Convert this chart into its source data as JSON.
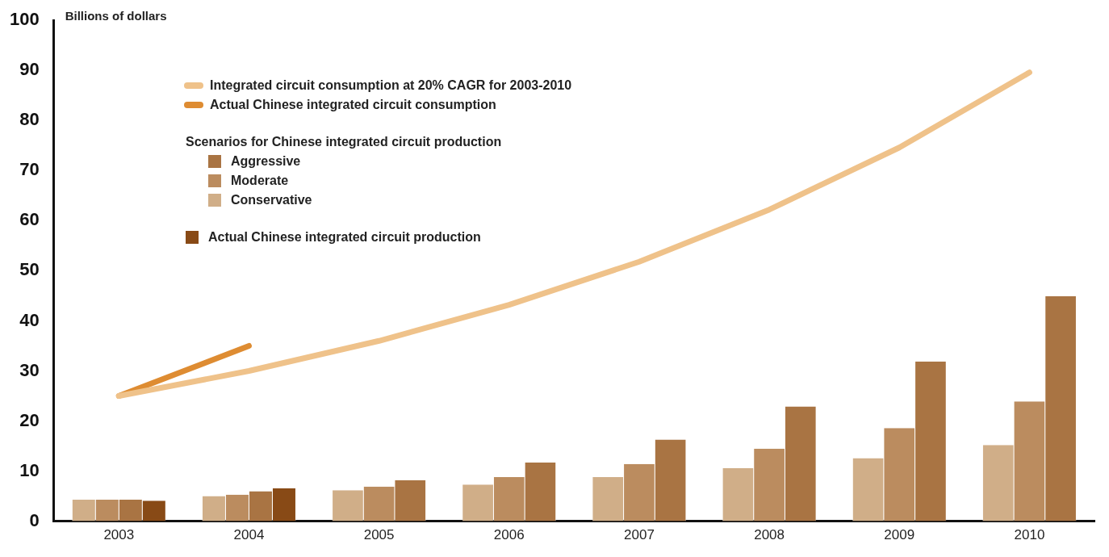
{
  "chart_data": {
    "type": "bar",
    "ylabel": "Billions of dollars",
    "legend_title": "Scenarios for Chinese integrated circuit production",
    "categories": [
      "2003",
      "2004",
      "2005",
      "2006",
      "2007",
      "2008",
      "2009",
      "2010"
    ],
    "series": [
      {
        "name": "Integrated circuit consumption at 20% CAGR for 2003-2010",
        "type": "line",
        "color": "#efc28a",
        "values": [
          25,
          30,
          36,
          43.2,
          51.8,
          62.2,
          74.6,
          89.6
        ]
      },
      {
        "name": "Actual Chinese integrated circuit consumption",
        "type": "line",
        "color": "#de8c32",
        "values": [
          25,
          35,
          null,
          null,
          null,
          null,
          null,
          null
        ]
      },
      {
        "name": "Conservative",
        "color": "#d0ae88",
        "values": [
          4.3,
          5.0,
          6.2,
          7.3,
          8.8,
          10.6,
          12.6,
          15.2
        ]
      },
      {
        "name": "Moderate",
        "color": "#bb8c5f",
        "values": [
          4.3,
          5.3,
          6.9,
          8.8,
          11.4,
          14.5,
          18.6,
          23.9
        ]
      },
      {
        "name": "Aggressive",
        "color": "#a97443",
        "values": [
          4.3,
          6.0,
          8.2,
          11.7,
          16.3,
          22.9,
          31.9,
          44.9
        ]
      },
      {
        "name": "Actual Chinese integrated circuit production",
        "color": "#884a16",
        "values": [
          4.1,
          6.6,
          null,
          null,
          null,
          null,
          null,
          null
        ]
      }
    ],
    "ylim": [
      0,
      100
    ],
    "yticks": [
      0,
      10,
      20,
      30,
      40,
      50,
      60,
      70,
      80,
      90,
      100
    ],
    "grid": false,
    "legend": "top left"
  }
}
